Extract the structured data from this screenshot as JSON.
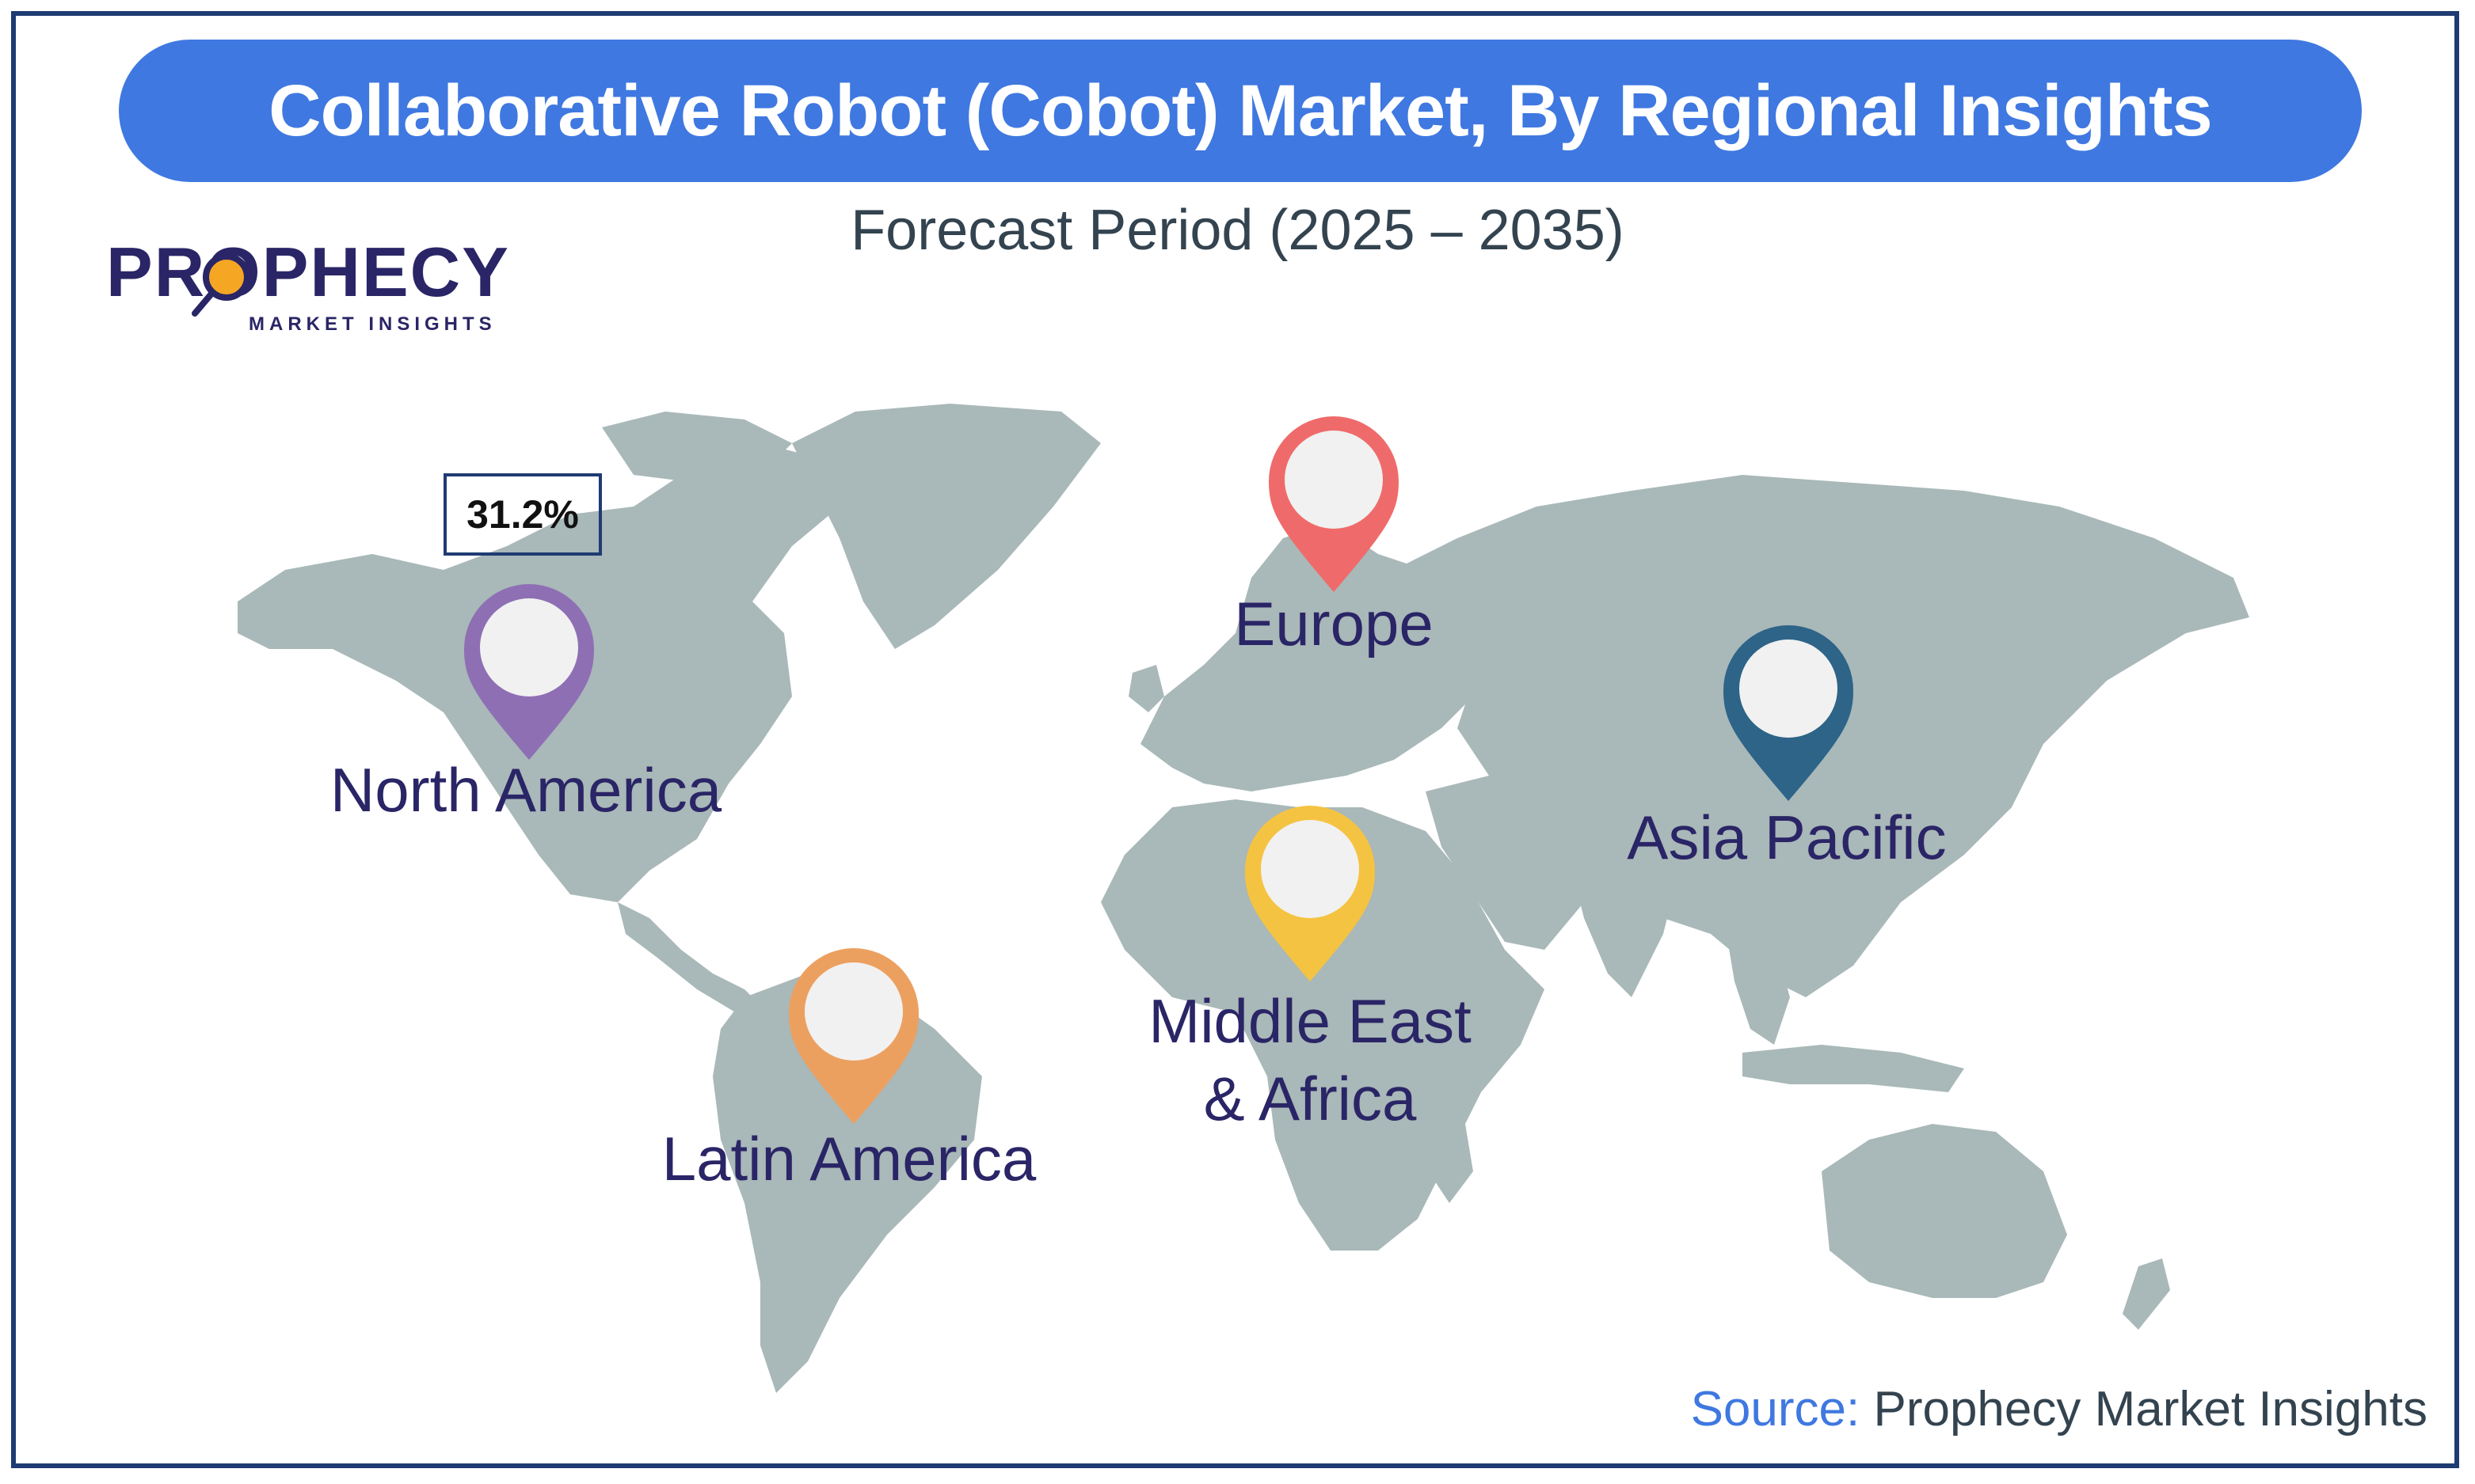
{
  "title": "Collaborative Robot (Cobot) Market, By Regional Insights",
  "subtitle": "Forecast Period (2025 – 2035)",
  "logo": {
    "main": "PROPHECY",
    "sub": "MARKET INSIGHTS"
  },
  "regions": [
    {
      "id": "north-america",
      "label": "North America",
      "pin_color": "#8e6fb4"
    },
    {
      "id": "europe",
      "label": "Europe",
      "pin_color": "#ef6b6b"
    },
    {
      "id": "asia-pacific",
      "label": "Asia Pacific",
      "pin_color": "#2d6488"
    },
    {
      "id": "middle-east-africa",
      "label": "Middle East & Africa",
      "label_lines": [
        "Middle East",
        "& Africa"
      ],
      "pin_color": "#f5c342"
    },
    {
      "id": "latin-america",
      "label": "Latin America",
      "pin_color": "#eca060"
    }
  ],
  "highlight": {
    "region": "North America",
    "value": "31.2%"
  },
  "source": {
    "label": "Source:",
    "text": "Prophecy Market Insights"
  },
  "colors": {
    "land": "#a9b8b8",
    "title_bar": "#3f78e0",
    "frame": "#1f3b73",
    "label_text": "#2a2566"
  }
}
